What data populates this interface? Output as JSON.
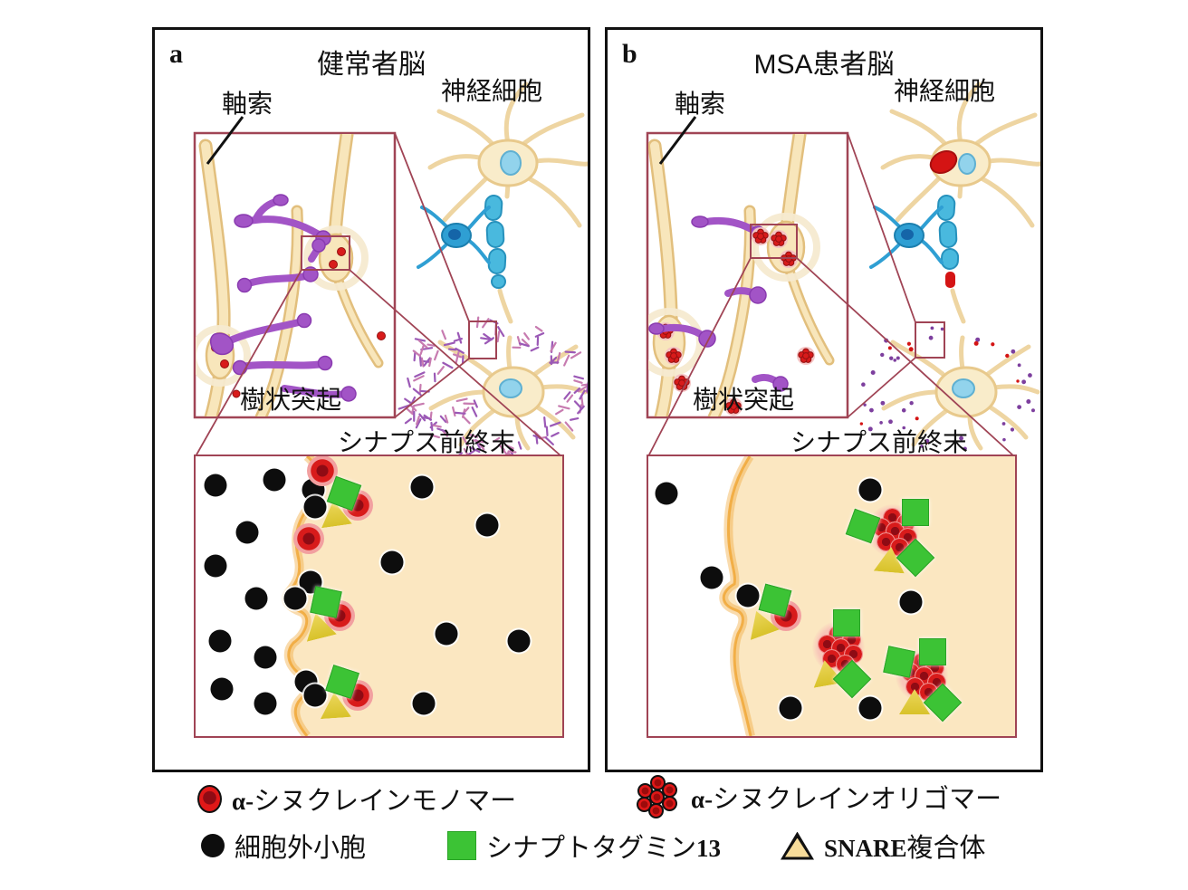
{
  "colors": {
    "panelBorder": "#111111",
    "insetBorder": "#a04455",
    "axonFill": "#f8e6bb",
    "axonStroke": "#e2bf7d",
    "halo": "#f5ead0",
    "dendrite": "#a254c6",
    "dendriteDark": "#8a3bb0",
    "myelin": "#49b9de",
    "myelinDark": "#2792bd",
    "oligocyte": "#2f9fd3",
    "oligocyteNuc": "#1565a8",
    "nucleusFill": "#92d3ec",
    "nucleusStroke": "#5fb0d2",
    "inclusion": "#d41414",
    "monomerRed": "#d81b1b",
    "redDotStroke": "#941111",
    "vesicle": "#0d0d0d",
    "sytGreen": "#3cc335",
    "snareYellow": "#dcc32e",
    "snareLegendFill": "#f7dc9a",
    "terminalFill": "#fbe7c1",
    "terminalEdge": "#f0a532",
    "fuzzPurple": "#9b59b6",
    "fuzzPink": "#f5c4c4"
  },
  "panels": [
    {
      "label": "a",
      "title": "健常者脳",
      "labels": {
        "axon": "軸索",
        "neuron": "神経細胞",
        "dendrite": "樹状突起",
        "presynaptic": "シナプス前終末"
      },
      "detail": {
        "markers": [
          {
            "t": "vesicle",
            "x": 5.4,
            "y": 10.4
          },
          {
            "t": "vesicle",
            "x": 21.5,
            "y": 8.4
          },
          {
            "t": "vesicle",
            "x": 14.1,
            "y": 27.2
          },
          {
            "t": "vesicle",
            "x": 5.4,
            "y": 39.2
          },
          {
            "t": "vesicle",
            "x": 16.5,
            "y": 50.8
          },
          {
            "t": "vesicle",
            "x": 6.7,
            "y": 66.0
          },
          {
            "t": "vesicle",
            "x": 19.0,
            "y": 71.8
          },
          {
            "t": "vesicle",
            "x": 7.2,
            "y": 83.2
          },
          {
            "t": "vesicle",
            "x": 19.0,
            "y": 88.5
          },
          {
            "t": "vesicle",
            "x": 32.1,
            "y": 12.0
          },
          {
            "t": "vesicle",
            "x": 32.6,
            "y": 18.1
          },
          {
            "t": "vesicle",
            "x": 31.4,
            "y": 45.0
          },
          {
            "t": "vesicle",
            "x": 27.2,
            "y": 50.8
          },
          {
            "t": "vesicle",
            "x": 30.1,
            "y": 80.6
          },
          {
            "t": "vesicle",
            "x": 32.5,
            "y": 85.5
          },
          {
            "t": "vesicle",
            "x": 61.7,
            "y": 11.0
          },
          {
            "t": "vesicle",
            "x": 79.5,
            "y": 24.6
          },
          {
            "t": "vesicle",
            "x": 53.6,
            "y": 37.9
          },
          {
            "t": "vesicle",
            "x": 68.4,
            "y": 63.4
          },
          {
            "t": "vesicle",
            "x": 88.1,
            "y": 66.0
          },
          {
            "t": "vesicle",
            "x": 62.2,
            "y": 88.5
          },
          {
            "t": "monomer",
            "x": 34.6,
            "y": 5.2
          },
          {
            "t": "monomer",
            "x": 44.2,
            "y": 17.5
          },
          {
            "t": "monomer",
            "x": 30.9,
            "y": 29.4
          },
          {
            "t": "monomer",
            "x": 39.3,
            "y": 57.0
          },
          {
            "t": "monomer",
            "x": 44.2,
            "y": 85.4
          },
          {
            "t": "snare",
            "x": 38.0,
            "y": 20.3,
            "rot": -8
          },
          {
            "t": "snare",
            "x": 33.5,
            "y": 60.5,
            "rot": -14
          },
          {
            "t": "snare",
            "x": 38.0,
            "y": 89.0,
            "rot": -4
          },
          {
            "t": "syt13",
            "x": 40.5,
            "y": 13.3,
            "rot": 20
          },
          {
            "t": "syt13",
            "x": 35.6,
            "y": 52.1,
            "rot": 12
          },
          {
            "t": "syt13",
            "x": 40.0,
            "y": 80.6,
            "rot": 18
          }
        ]
      }
    },
    {
      "label": "b",
      "title": "MSA患者脳",
      "labels": {
        "axon": "軸索",
        "neuron": "神経細胞",
        "dendrite": "樹状突起",
        "presynaptic": "シナプス前終末"
      },
      "detail": {
        "markers": [
          {
            "t": "vesicle",
            "x": 4.9,
            "y": 13.3
          },
          {
            "t": "vesicle",
            "x": 17.3,
            "y": 43.4
          },
          {
            "t": "vesicle",
            "x": 27.2,
            "y": 49.8
          },
          {
            "t": "vesicle",
            "x": 60.5,
            "y": 12.0
          },
          {
            "t": "vesicle",
            "x": 71.6,
            "y": 52.1
          },
          {
            "t": "vesicle",
            "x": 38.8,
            "y": 90.0
          },
          {
            "t": "vesicle",
            "x": 60.5,
            "y": 90.0
          },
          {
            "t": "oligomer",
            "x": 66.7,
            "y": 26.5
          },
          {
            "t": "oligomer",
            "x": 51.9,
            "y": 68.3
          },
          {
            "t": "oligomer",
            "x": 74.6,
            "y": 78.3
          },
          {
            "t": "monomer",
            "x": 37.5,
            "y": 57.0
          },
          {
            "t": "snare",
            "x": 30.6,
            "y": 59.5,
            "rot": -20
          },
          {
            "t": "snare",
            "x": 65.9,
            "y": 36.9,
            "rot": 5
          },
          {
            "t": "snare",
            "x": 48.6,
            "y": 77.3,
            "rot": -10
          },
          {
            "t": "snare",
            "x": 72.6,
            "y": 87.7,
            "rot": 0
          },
          {
            "t": "syt13",
            "x": 34.6,
            "y": 51.5,
            "rot": 15
          },
          {
            "t": "syt13",
            "x": 58.5,
            "y": 24.9,
            "rot": 20
          },
          {
            "t": "syt13",
            "x": 72.8,
            "y": 20.1,
            "rot": 0
          },
          {
            "t": "syt13",
            "x": 72.8,
            "y": 36.2,
            "rot": 45
          },
          {
            "t": "syt13",
            "x": 54.1,
            "y": 59.5,
            "rot": 0
          },
          {
            "t": "syt13",
            "x": 55.6,
            "y": 79.6,
            "rot": 45
          },
          {
            "t": "syt13",
            "x": 68.4,
            "y": 73.5,
            "rot": 12
          },
          {
            "t": "syt13",
            "x": 77.5,
            "y": 69.9,
            "rot": 0
          },
          {
            "t": "syt13",
            "x": 80.2,
            "y": 88.0,
            "rot": 45
          }
        ]
      }
    }
  ],
  "legend": {
    "items": [
      {
        "icon": "monomer",
        "pre": "α-",
        "label": "シヌクレインモノマー",
        "post": ""
      },
      {
        "icon": "oligomer",
        "pre": "α-",
        "label": "シヌクレインオリゴマー",
        "post": ""
      },
      {
        "icon": "vesicle",
        "pre": "",
        "label": "細胞外小胞",
        "post": ""
      },
      {
        "icon": "syt13",
        "pre": "",
        "label": "シナプトタグミン",
        "post": "13"
      },
      {
        "icon": "snare",
        "pre": "SNARE",
        "label": "複合体",
        "post": ""
      }
    ]
  }
}
